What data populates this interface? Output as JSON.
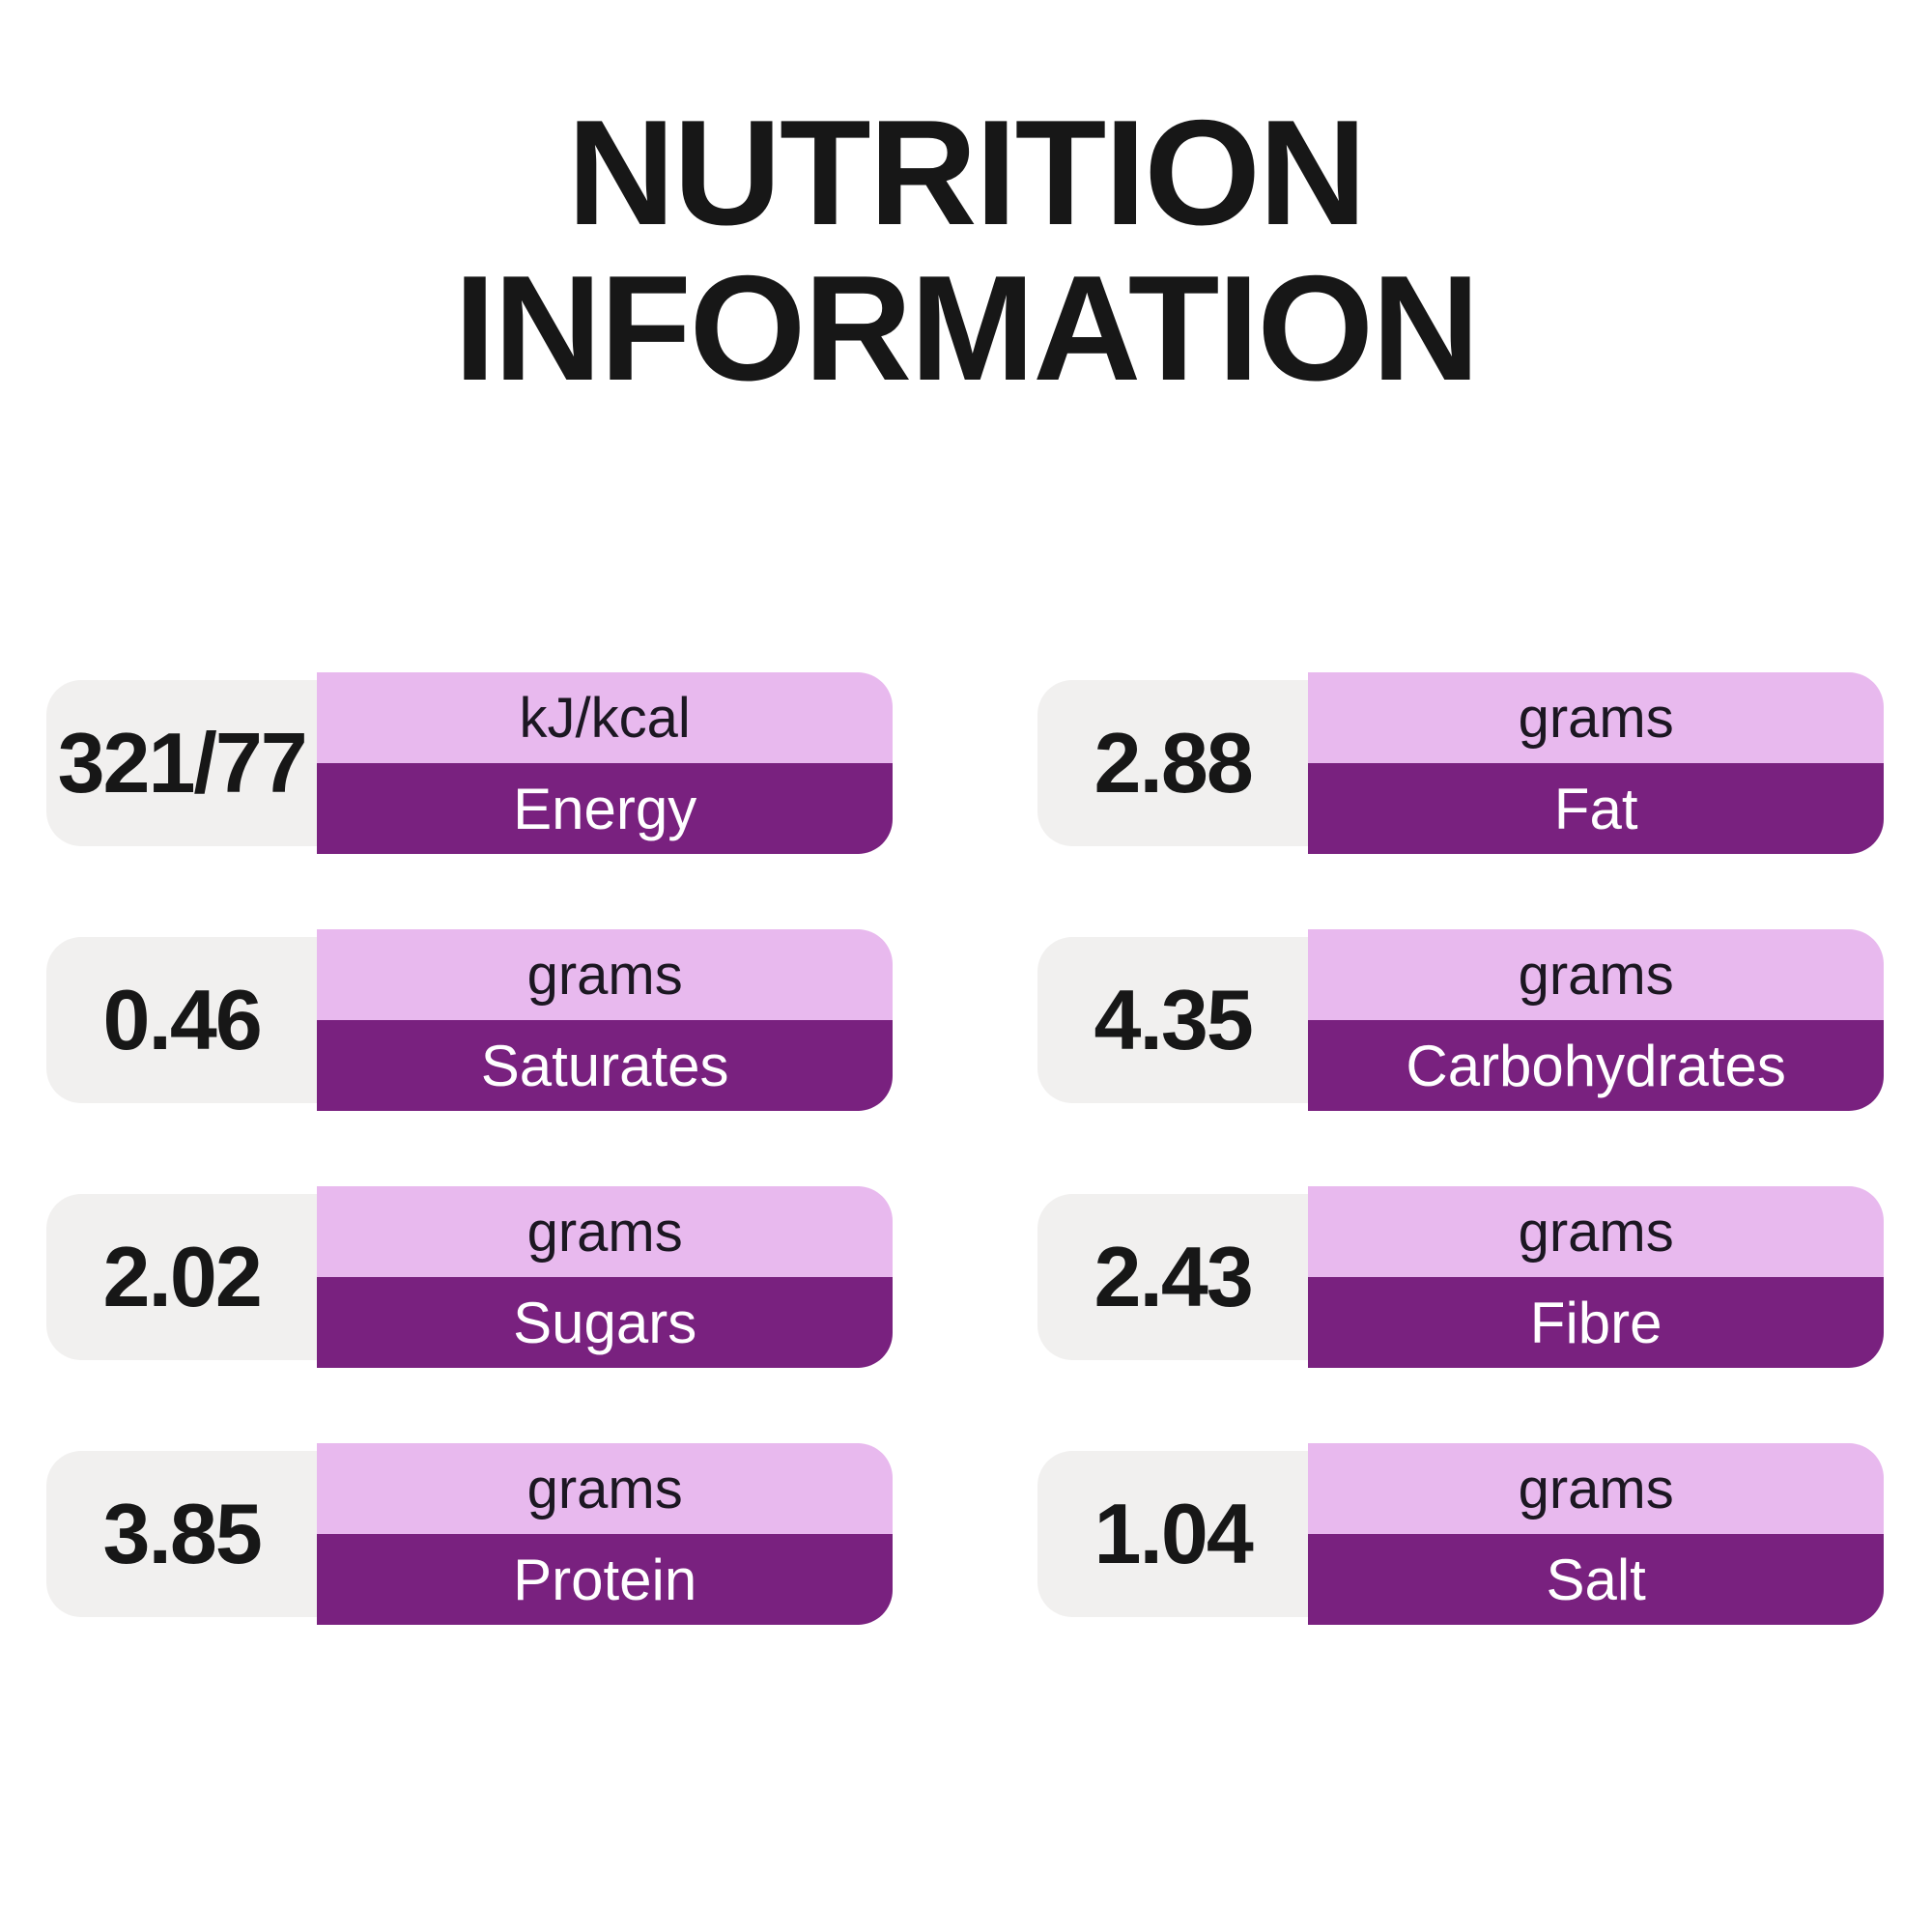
{
  "title": {
    "line1": "NUTRITION",
    "line2": "INFORMATION"
  },
  "cards": [
    {
      "value": "321/77",
      "unit": "kJ/kcal",
      "label": "Energy"
    },
    {
      "value": "2.88",
      "unit": "grams",
      "label": "Fat"
    },
    {
      "value": "0.46",
      "unit": "grams",
      "label": "Saturates"
    },
    {
      "value": "4.35",
      "unit": "grams",
      "label": "Carbohydrates"
    },
    {
      "value": "2.02",
      "unit": "grams",
      "label": "Sugars"
    },
    {
      "value": "2.43",
      "unit": "grams",
      "label": "Fibre"
    },
    {
      "value": "3.85",
      "unit": "grams",
      "label": "Protein"
    },
    {
      "value": "1.04",
      "unit": "grams",
      "label": "Salt"
    }
  ],
  "colors": {
    "page_bg": "#ffffff",
    "card_bg": "#f1f0ef",
    "accent_light": "#e8b9ee",
    "accent_dark": "#79217f",
    "text_dark": "#171717",
    "label_text": "#ffffff"
  }
}
